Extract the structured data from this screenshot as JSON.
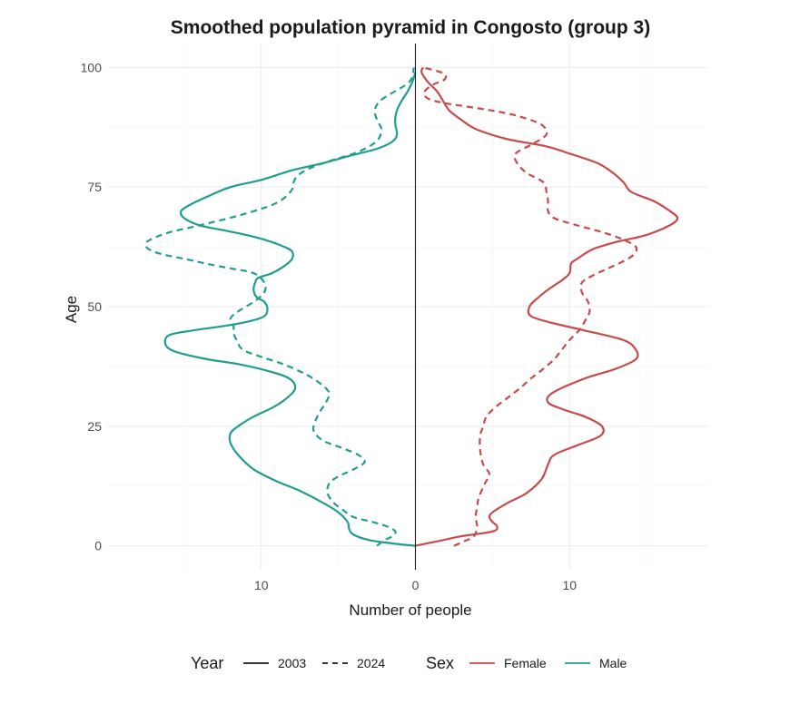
{
  "chart_data": {
    "type": "line",
    "title": "Smoothed population pyramid in Congosto (group 3)",
    "xlabel": "Number of people",
    "ylabel": "Age",
    "x_ticks": [
      -10,
      0,
      10
    ],
    "x_tick_labels": [
      "10",
      "0",
      "10"
    ],
    "y_ticks": [
      0,
      25,
      50,
      75,
      100
    ],
    "y_tick_labels": [
      "0",
      "25",
      "50",
      "75",
      "100"
    ],
    "xlim": [
      -20,
      19
    ],
    "ylim": [
      -5,
      105
    ],
    "grid": true,
    "legend_placement": "bottom",
    "legend": {
      "year_title": "Year",
      "year_items": [
        {
          "label": "2003",
          "dash": "solid"
        },
        {
          "label": "2024",
          "dash": "dashed"
        }
      ],
      "sex_title": "Sex",
      "sex_items": [
        {
          "label": "Female",
          "color": "#c94a4a"
        },
        {
          "label": "Male",
          "color": "#1f9e8f"
        }
      ]
    },
    "series": [
      {
        "sex": "Female",
        "year": "2003",
        "points": [
          [
            0,
            0
          ],
          [
            1.5,
            1
          ],
          [
            3,
            2
          ],
          [
            5,
            3
          ],
          [
            5.3,
            4
          ],
          [
            5,
            5
          ],
          [
            4.8,
            6
          ],
          [
            5,
            7
          ],
          [
            6,
            9
          ],
          [
            7.2,
            11
          ],
          [
            8.2,
            14
          ],
          [
            8.6,
            17
          ],
          [
            9,
            19
          ],
          [
            10.5,
            21
          ],
          [
            12,
            23
          ],
          [
            12.1,
            25
          ],
          [
            11,
            27
          ],
          [
            9.6,
            28.5
          ],
          [
            8.6,
            30
          ],
          [
            8.9,
            32
          ],
          [
            11,
            35
          ],
          [
            13,
            37
          ],
          [
            14.3,
            39
          ],
          [
            14.3,
            41
          ],
          [
            13.5,
            43
          ],
          [
            11,
            45
          ],
          [
            9,
            46.5
          ],
          [
            7.5,
            48
          ],
          [
            7.4,
            50
          ],
          [
            8,
            52
          ],
          [
            8.8,
            54
          ],
          [
            9.5,
            55.5
          ],
          [
            10,
            57
          ],
          [
            10.1,
            59
          ],
          [
            10.5,
            60
          ],
          [
            11.5,
            62
          ],
          [
            13,
            63.5
          ],
          [
            15,
            65
          ],
          [
            16.5,
            67
          ],
          [
            17,
            68.5
          ],
          [
            16.5,
            70
          ],
          [
            15.5,
            72
          ],
          [
            14,
            74
          ],
          [
            13.5,
            76
          ],
          [
            12.8,
            78
          ],
          [
            11.8,
            80
          ],
          [
            10,
            82
          ],
          [
            8.5,
            83.5
          ],
          [
            6,
            85
          ],
          [
            4,
            87
          ],
          [
            3,
            89
          ],
          [
            2.2,
            91
          ],
          [
            1.8,
            93
          ],
          [
            1.4,
            95
          ],
          [
            0.8,
            97
          ],
          [
            0.4,
            99
          ],
          [
            0.5,
            100
          ]
        ]
      },
      {
        "sex": "Female",
        "year": "2024",
        "points": [
          [
            2.5,
            0
          ],
          [
            3.2,
            1
          ],
          [
            3.8,
            2
          ],
          [
            4,
            4
          ],
          [
            3.9,
            6
          ],
          [
            4,
            8
          ],
          [
            4.1,
            10
          ],
          [
            4.5,
            13
          ],
          [
            4.8,
            15
          ],
          [
            4.4,
            17
          ],
          [
            4.2,
            20
          ],
          [
            4.2,
            23
          ],
          [
            4.4,
            25
          ],
          [
            4.6,
            27
          ],
          [
            5.2,
            29
          ],
          [
            6,
            31
          ],
          [
            6.8,
            33
          ],
          [
            7.5,
            35
          ],
          [
            8.3,
            37
          ],
          [
            9,
            39
          ],
          [
            9.5,
            41
          ],
          [
            10,
            43
          ],
          [
            10.6,
            45
          ],
          [
            11,
            47
          ],
          [
            11.3,
            49
          ],
          [
            11.2,
            51
          ],
          [
            10.8,
            53
          ],
          [
            10.8,
            55
          ],
          [
            11.5,
            56.5
          ],
          [
            12.5,
            58
          ],
          [
            13.5,
            59.5
          ],
          [
            14.2,
            61
          ],
          [
            14.3,
            62.5
          ],
          [
            13.5,
            64
          ],
          [
            12.2,
            65.5
          ],
          [
            10.5,
            67
          ],
          [
            9,
            68.5
          ],
          [
            8.6,
            70
          ],
          [
            8.6,
            72
          ],
          [
            8.5,
            74
          ],
          [
            8.3,
            76
          ],
          [
            7.2,
            78
          ],
          [
            6.6,
            80
          ],
          [
            6.5,
            82
          ],
          [
            7.6,
            84
          ],
          [
            8.5,
            86
          ],
          [
            8.2,
            88
          ],
          [
            7,
            89.5
          ],
          [
            5.8,
            90.5
          ],
          [
            4,
            91.5
          ],
          [
            2,
            92.5
          ],
          [
            0.8,
            93.5
          ],
          [
            0.6,
            95
          ],
          [
            1.2,
            96.5
          ],
          [
            1.9,
            97.5
          ],
          [
            1.8,
            98.8
          ],
          [
            0.5,
            100
          ]
        ]
      },
      {
        "sex": "Male",
        "year": "2003",
        "points": [
          [
            0,
            0
          ],
          [
            -1.5,
            0.5
          ],
          [
            -3,
            1.2
          ],
          [
            -4,
            2.3
          ],
          [
            -4.3,
            3.5
          ],
          [
            -4.4,
            5
          ],
          [
            -5,
            7
          ],
          [
            -6,
            9
          ],
          [
            -7.5,
            11.5
          ],
          [
            -9,
            13.5
          ],
          [
            -10.5,
            16
          ],
          [
            -11.5,
            19
          ],
          [
            -12,
            21.5
          ],
          [
            -12,
            23.5
          ],
          [
            -11.5,
            25
          ],
          [
            -10.5,
            27
          ],
          [
            -9.2,
            29
          ],
          [
            -8.3,
            31
          ],
          [
            -7.8,
            33
          ],
          [
            -8.2,
            35
          ],
          [
            -9.5,
            36.5
          ],
          [
            -11.5,
            38
          ],
          [
            -13.5,
            39
          ],
          [
            -15.5,
            40.5
          ],
          [
            -16.2,
            42
          ],
          [
            -16,
            44
          ],
          [
            -14.5,
            45
          ],
          [
            -12.3,
            46
          ],
          [
            -10.7,
            47
          ],
          [
            -9.8,
            48
          ],
          [
            -9.6,
            49.5
          ],
          [
            -9.8,
            51
          ],
          [
            -10.3,
            52
          ],
          [
            -10.5,
            53.5
          ],
          [
            -10.4,
            55
          ],
          [
            -10.2,
            56
          ],
          [
            -9.3,
            57
          ],
          [
            -8.5,
            58.5
          ],
          [
            -8,
            60
          ],
          [
            -8,
            61.5
          ],
          [
            -8.5,
            62.5
          ],
          [
            -9.8,
            64
          ],
          [
            -11,
            65
          ],
          [
            -12.5,
            66
          ],
          [
            -14,
            67
          ],
          [
            -15,
            68.5
          ],
          [
            -15.2,
            70
          ],
          [
            -14.5,
            71.5
          ],
          [
            -13.5,
            73
          ],
          [
            -12,
            75
          ],
          [
            -10,
            76.5
          ],
          [
            -8,
            78.5
          ],
          [
            -6,
            80
          ],
          [
            -4.3,
            81.5
          ],
          [
            -2.5,
            83
          ],
          [
            -1.5,
            84.5
          ],
          [
            -1.2,
            86
          ],
          [
            -1.3,
            88
          ],
          [
            -1.3,
            89.5
          ],
          [
            -1.2,
            91
          ],
          [
            -0.9,
            93
          ],
          [
            -0.5,
            95
          ],
          [
            -0.2,
            97
          ],
          [
            0,
            99
          ]
        ]
      },
      {
        "sex": "Male",
        "year": "2024",
        "points": [
          [
            -2.5,
            0
          ],
          [
            -2,
            1.2
          ],
          [
            -1.5,
            2
          ],
          [
            -1.3,
            3
          ],
          [
            -1.8,
            4
          ],
          [
            -2.8,
            5
          ],
          [
            -4,
            6
          ],
          [
            -4.7,
            7.5
          ],
          [
            -5.3,
            9
          ],
          [
            -5.7,
            11
          ],
          [
            -5.6,
            13
          ],
          [
            -5,
            14.5
          ],
          [
            -4,
            16
          ],
          [
            -3.3,
            17.5
          ],
          [
            -3.7,
            19
          ],
          [
            -4.8,
            20.5
          ],
          [
            -6,
            22
          ],
          [
            -6.6,
            24
          ],
          [
            -6.5,
            26
          ],
          [
            -6.2,
            28
          ],
          [
            -5.8,
            30
          ],
          [
            -5.6,
            32
          ],
          [
            -6.2,
            34
          ],
          [
            -7.2,
            36
          ],
          [
            -8.6,
            38
          ],
          [
            -10,
            39.5
          ],
          [
            -11.2,
            41
          ],
          [
            -11.6,
            43
          ],
          [
            -11.8,
            44.5
          ],
          [
            -11.8,
            46
          ],
          [
            -12,
            47.5
          ],
          [
            -11.5,
            49
          ],
          [
            -10.5,
            51
          ],
          [
            -9.8,
            53
          ],
          [
            -9.8,
            55
          ],
          [
            -10.5,
            57
          ],
          [
            -12,
            58
          ],
          [
            -13.6,
            59
          ],
          [
            -15,
            60
          ],
          [
            -16.5,
            61
          ],
          [
            -17.3,
            62
          ],
          [
            -17.5,
            63
          ],
          [
            -17.2,
            64
          ],
          [
            -16,
            65.5
          ],
          [
            -14,
            67
          ],
          [
            -11.5,
            69
          ],
          [
            -9.5,
            71
          ],
          [
            -8.6,
            72.5
          ],
          [
            -8,
            74.5
          ],
          [
            -7.9,
            76
          ],
          [
            -7.6,
            77.5
          ],
          [
            -6.8,
            79
          ],
          [
            -5.5,
            80.5
          ],
          [
            -4,
            82
          ],
          [
            -3,
            83.5
          ],
          [
            -2.4,
            85
          ],
          [
            -2.2,
            87
          ],
          [
            -2.4,
            88.5
          ],
          [
            -2.6,
            90
          ],
          [
            -2.6,
            91.5
          ],
          [
            -2.3,
            93
          ],
          [
            -1.6,
            94.5
          ],
          [
            -0.8,
            96
          ],
          [
            -0.4,
            97
          ],
          [
            -0.2,
            98
          ],
          [
            -0.1,
            100
          ]
        ]
      }
    ]
  }
}
